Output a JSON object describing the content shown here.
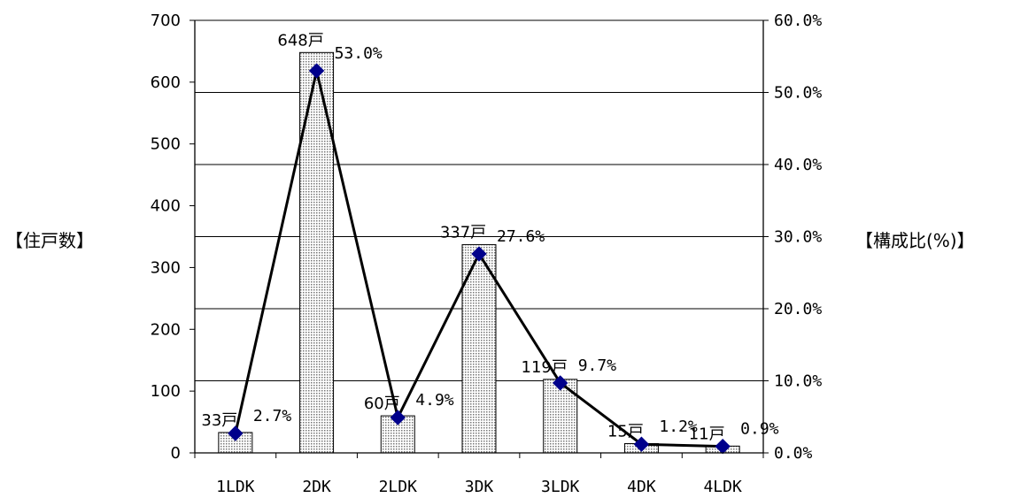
{
  "chart_data": {
    "type": "bar",
    "categories": [
      "1LDK",
      "2DK",
      "2LDK",
      "3DK",
      "3LDK",
      "4DK",
      "4LDK"
    ],
    "series": [
      {
        "type": "bar",
        "axis": "left",
        "values": [
          33,
          648,
          60,
          337,
          119,
          15,
          11
        ],
        "labels": [
          "33戸",
          "648戸",
          "60戸",
          "337戸",
          "119戸",
          "15戸",
          "11戸"
        ]
      },
      {
        "type": "line",
        "axis": "right",
        "values": [
          2.7,
          53.0,
          4.9,
          27.6,
          9.7,
          1.2,
          0.9
        ],
        "labels": [
          "2.7%",
          "53.0%",
          "4.9%",
          "27.6%",
          "9.7%",
          "1.2%",
          "0.9%"
        ]
      }
    ],
    "ylabel": "【住戸数】",
    "y2label": "【構成比(%)】",
    "ylim": [
      0,
      700
    ],
    "y2lim": [
      0,
      60
    ],
    "yticks": [
      "0",
      "100",
      "200",
      "300",
      "400",
      "500",
      "600",
      "700"
    ],
    "y2ticks": [
      "0.0%",
      "10.0%",
      "20.0%",
      "30.0%",
      "40.0%",
      "50.0%",
      "60.0%"
    ],
    "grid": true,
    "colors": {
      "bar_fill": "#d9d9d9",
      "line": "#000000",
      "marker": "#00008b"
    }
  }
}
